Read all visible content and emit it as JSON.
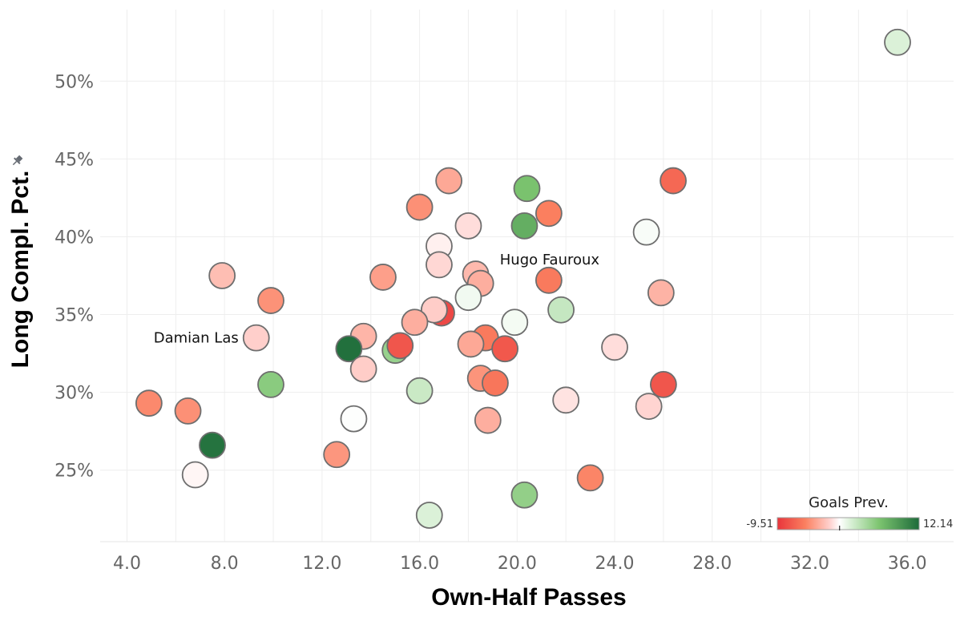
{
  "chart_data": {
    "type": "scatter",
    "xlabel": "Own-Half Passes",
    "ylabel": "Long Compl. Pct.",
    "ylabel_icon": "pin-icon",
    "xlim": [
      2.9,
      37.9
    ],
    "ylim": [
      20.4,
      54.6
    ],
    "x_ticks": [
      4.0,
      8.0,
      12.0,
      16.0,
      20.0,
      24.0,
      28.0,
      32.0,
      36.0
    ],
    "x_tick_labels": [
      "4.0",
      "8.0",
      "12.0",
      "16.0",
      "20.0",
      "24.0",
      "28.0",
      "32.0",
      "36.0"
    ],
    "y_ticks": [
      25,
      30,
      35,
      40,
      45,
      50
    ],
    "y_tick_labels": [
      "25%",
      "30%",
      "35%",
      "40%",
      "45%",
      "50%"
    ],
    "grid": true,
    "color_legend": {
      "title": "Goals Prev.",
      "min": -9.51,
      "max": 12.14,
      "min_label": "-9.51",
      "max_label": "12.14",
      "placement": "bottom-right",
      "colors": [
        "#e8353b",
        "#fb8060",
        "#ffd3d0",
        "#ffffff",
        "#d6efd3",
        "#7cc46f",
        "#1d6b3a"
      ]
    },
    "annotations": [
      {
        "text": "Damian Las",
        "x": 9.3,
        "y": 33.5
      },
      {
        "text": "Hugo Fauroux",
        "x": 21.4,
        "y": 37.2
      }
    ],
    "points": [
      {
        "x": 35.6,
        "y": 52.5,
        "goals_prevented": 1.6
      },
      {
        "x": 17.2,
        "y": 43.6,
        "goals_prevented": -3.4
      },
      {
        "x": 20.4,
        "y": 43.1,
        "goals_prevented": 6.2
      },
      {
        "x": 26.4,
        "y": 43.6,
        "goals_prevented": -6.6
      },
      {
        "x": 16.0,
        "y": 41.9,
        "goals_prevented": -4.5
      },
      {
        "x": 21.3,
        "y": 41.5,
        "goals_prevented": -5.3
      },
      {
        "x": 20.3,
        "y": 40.7,
        "goals_prevented": 7.6
      },
      {
        "x": 18.0,
        "y": 40.7,
        "goals_prevented": -1.1
      },
      {
        "x": 25.3,
        "y": 40.3,
        "goals_prevented": 0.3
      },
      {
        "x": 16.8,
        "y": 39.4,
        "goals_prevented": -0.5
      },
      {
        "x": 16.8,
        "y": 38.2,
        "goals_prevented": -1.3
      },
      {
        "x": 7.9,
        "y": 37.5,
        "goals_prevented": -2.4
      },
      {
        "x": 14.5,
        "y": 37.4,
        "goals_prevented": -3.8
      },
      {
        "x": 18.3,
        "y": 37.6,
        "goals_prevented": -2.6
      },
      {
        "x": 18.5,
        "y": 37.0,
        "goals_prevented": -3.1
      },
      {
        "x": 21.3,
        "y": 37.2,
        "goals_prevented": -5.6
      },
      {
        "x": 25.9,
        "y": 36.4,
        "goals_prevented": -2.9
      },
      {
        "x": 9.9,
        "y": 35.9,
        "goals_prevented": -4.4
      },
      {
        "x": 18.0,
        "y": 36.1,
        "goals_prevented": 0.6
      },
      {
        "x": 21.8,
        "y": 35.3,
        "goals_prevented": 2.6
      },
      {
        "x": 16.9,
        "y": 35.1,
        "goals_prevented": -8.4
      },
      {
        "x": 16.6,
        "y": 35.3,
        "goals_prevented": -1.7
      },
      {
        "x": 15.8,
        "y": 34.5,
        "goals_prevented": -3.1
      },
      {
        "x": 19.9,
        "y": 34.5,
        "goals_prevented": 0.5
      },
      {
        "x": 9.3,
        "y": 33.5,
        "goals_prevented": -1.6
      },
      {
        "x": 13.7,
        "y": 33.6,
        "goals_prevented": -2.8
      },
      {
        "x": 18.7,
        "y": 33.5,
        "goals_prevented": -5.6
      },
      {
        "x": 13.1,
        "y": 32.8,
        "goals_prevented": 11.8
      },
      {
        "x": 15.0,
        "y": 32.7,
        "goals_prevented": 4.8
      },
      {
        "x": 15.2,
        "y": 33.0,
        "goals_prevented": -7.6
      },
      {
        "x": 18.1,
        "y": 33.1,
        "goals_prevented": -3.4
      },
      {
        "x": 19.5,
        "y": 32.8,
        "goals_prevented": -7.5
      },
      {
        "x": 24.0,
        "y": 32.9,
        "goals_prevented": -1.1
      },
      {
        "x": 13.7,
        "y": 31.5,
        "goals_prevented": -1.7
      },
      {
        "x": 18.5,
        "y": 30.9,
        "goals_prevented": -4.3
      },
      {
        "x": 19.1,
        "y": 30.6,
        "goals_prevented": -5.8
      },
      {
        "x": 9.9,
        "y": 30.5,
        "goals_prevented": 5.4
      },
      {
        "x": 26.0,
        "y": 30.5,
        "goals_prevented": -7.6
      },
      {
        "x": 16.0,
        "y": 30.1,
        "goals_prevented": 2.4
      },
      {
        "x": 4.9,
        "y": 29.3,
        "goals_prevented": -4.8
      },
      {
        "x": 22.0,
        "y": 29.5,
        "goals_prevented": -0.9
      },
      {
        "x": 25.4,
        "y": 29.1,
        "goals_prevented": -1.4
      },
      {
        "x": 6.5,
        "y": 28.8,
        "goals_prevented": -4.5
      },
      {
        "x": 13.3,
        "y": 28.3,
        "goals_prevented": 0.1
      },
      {
        "x": 18.8,
        "y": 28.2,
        "goals_prevented": -3.1
      },
      {
        "x": 7.5,
        "y": 26.6,
        "goals_prevented": 11.6
      },
      {
        "x": 12.6,
        "y": 26.0,
        "goals_prevented": -4.2
      },
      {
        "x": 6.8,
        "y": 24.7,
        "goals_prevented": -0.3
      },
      {
        "x": 23.0,
        "y": 24.5,
        "goals_prevented": -5.0
      },
      {
        "x": 20.3,
        "y": 23.4,
        "goals_prevented": 5.0
      },
      {
        "x": 16.4,
        "y": 22.1,
        "goals_prevented": 1.6
      }
    ]
  }
}
